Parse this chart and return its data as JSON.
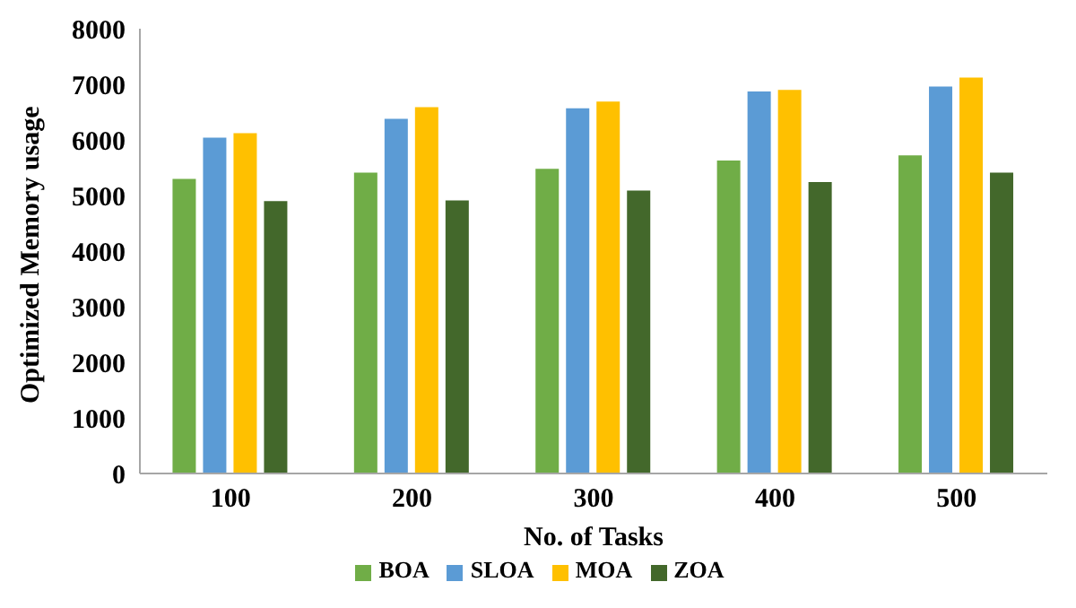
{
  "chart_data": {
    "type": "bar",
    "xlabel": "No. of Tasks",
    "ylabel": "Optimized Memory usage",
    "categories": [
      "100",
      "200",
      "300",
      "400",
      "500"
    ],
    "series": [
      {
        "name": "BOA",
        "color": "#70ad47",
        "values": [
          5300,
          5410,
          5480,
          5630,
          5720
        ]
      },
      {
        "name": "SLOA",
        "color": "#5b9bd5",
        "values": [
          6040,
          6380,
          6570,
          6870,
          6960
        ]
      },
      {
        "name": "MOA",
        "color": "#ffc000",
        "values": [
          6120,
          6590,
          6690,
          6900,
          7120
        ]
      },
      {
        "name": "ZOA",
        "color": "#43682b",
        "values": [
          4900,
          4910,
          5090,
          5240,
          5410
        ]
      }
    ],
    "ylim": [
      0,
      8000
    ],
    "yticks": [
      0,
      1000,
      2000,
      3000,
      4000,
      5000,
      6000,
      7000,
      8000
    ],
    "grid": false,
    "legend": "bottom"
  }
}
